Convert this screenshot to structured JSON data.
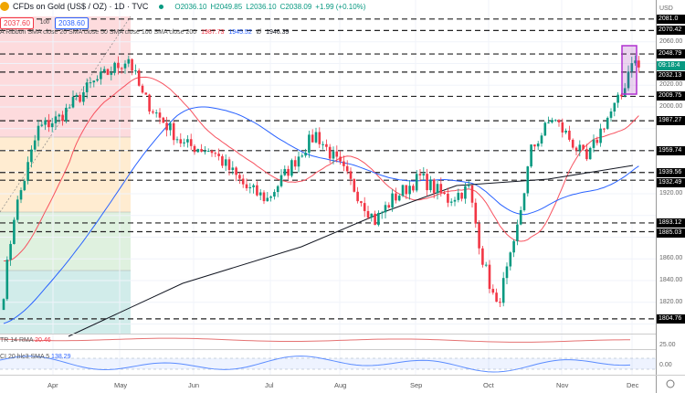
{
  "header": {
    "symbol": "CFDs on Gold (US$ / OZ) · 1D · TVC",
    "open": "O2036.10",
    "high": "H2049.85",
    "low": "L2036.10",
    "close": "C2038.09",
    "change": "+1.99 (+0.10%)",
    "sell": "2037.60",
    "spread": "100",
    "buy": "2038.60"
  },
  "indicators": {
    "ribbon": "A Ribbon SMA close 20 SMA close 50 SMA close 100 SMA close 200",
    "v1": "1987.73",
    "v2": "1945.52",
    "v3": "Ø",
    "v4": "1946.39"
  },
  "atr": {
    "label": "TR 14 RMA",
    "value": "20.46"
  },
  "cci": {
    "label": "CI 20 hlc3 SMA 5",
    "value": "138.29"
  },
  "axis": {
    "currency": "USD",
    "countdown": "09:18:4",
    "atr_tick": "25.00",
    "cci_tick": "0.00"
  },
  "colors": {
    "up": "#089981",
    "down": "#f23645",
    "sma20": "#f7525f",
    "sma50": "#2962ff",
    "sma200": "#131722"
  },
  "chart_data": {
    "type": "candlestick",
    "title": "CFDs on Gold (US$ / OZ) · 1D",
    "ylim": [
      1796,
      2088
    ],
    "yticks": [
      2060,
      2040,
      2020,
      2000,
      1980,
      1960,
      1940,
      1920,
      1900,
      1880,
      1860,
      1840,
      1820,
      1800
    ],
    "months": [
      "Apr",
      "May",
      "Jun",
      "Jul",
      "Aug",
      "Sep",
      "Oct",
      "Nov",
      "Dec"
    ],
    "levels": [
      "2081.0",
      "2070.42",
      "2048.79",
      "2032.13",
      "2009.75",
      "1987.27",
      "1959.74",
      "1939.56",
      "1932.49",
      "1893.12",
      "1885.03",
      "1804.76"
    ],
    "keyframes": [
      [
        0,
        1830
      ],
      [
        3,
        1900
      ],
      [
        10,
        1980
      ],
      [
        16,
        1990
      ],
      [
        25,
        2020
      ],
      [
        36,
        2045
      ],
      [
        40,
        2010
      ],
      [
        45,
        1990
      ],
      [
        52,
        1965
      ],
      [
        60,
        1960
      ],
      [
        70,
        1925
      ],
      [
        76,
        1915
      ],
      [
        86,
        1960
      ],
      [
        90,
        1975
      ],
      [
        98,
        1940
      ],
      [
        107,
        1895
      ],
      [
        112,
        1915
      ],
      [
        120,
        1935
      ],
      [
        128,
        1915
      ],
      [
        134,
        1925
      ],
      [
        138,
        1860
      ],
      [
        142,
        1815
      ],
      [
        147,
        1870
      ],
      [
        152,
        1960
      ],
      [
        158,
        1990
      ],
      [
        162,
        1975
      ],
      [
        168,
        1950
      ],
      [
        173,
        1985
      ],
      [
        178,
        2010
      ],
      [
        181,
        2045
      ],
      [
        183,
        2036
      ]
    ]
  }
}
